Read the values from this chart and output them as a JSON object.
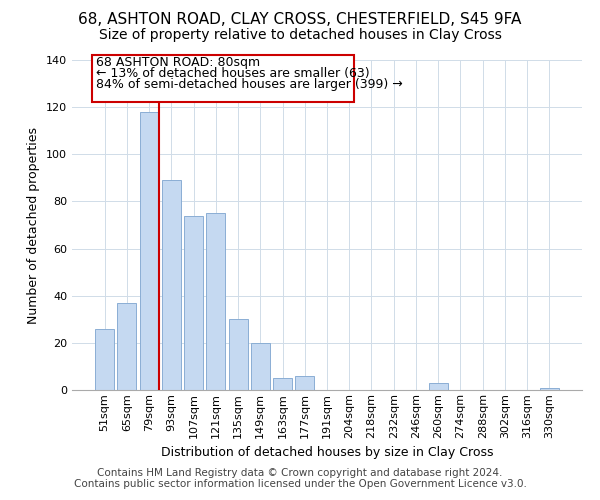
{
  "title": "68, ASHTON ROAD, CLAY CROSS, CHESTERFIELD, S45 9FA",
  "subtitle": "Size of property relative to detached houses in Clay Cross",
  "xlabel": "Distribution of detached houses by size in Clay Cross",
  "ylabel": "Number of detached properties",
  "bar_labels": [
    "51sqm",
    "65sqm",
    "79sqm",
    "93sqm",
    "107sqm",
    "121sqm",
    "135sqm",
    "149sqm",
    "163sqm",
    "177sqm",
    "191sqm",
    "204sqm",
    "218sqm",
    "232sqm",
    "246sqm",
    "260sqm",
    "274sqm",
    "288sqm",
    "302sqm",
    "316sqm",
    "330sqm"
  ],
  "bar_values": [
    26,
    37,
    118,
    89,
    74,
    75,
    30,
    20,
    5,
    6,
    0,
    0,
    0,
    0,
    0,
    3,
    0,
    0,
    0,
    0,
    1
  ],
  "bar_color": "#c5d9f1",
  "bar_edge_color": "#8baed4",
  "highlight_line_color": "#cc0000",
  "vline_bar_index": 2,
  "annotation_line1": "68 ASHTON ROAD: 80sqm",
  "annotation_line2": "← 13% of detached houses are smaller (63)",
  "annotation_line3": "84% of semi-detached houses are larger (399) →",
  "ylim": [
    0,
    140
  ],
  "yticks": [
    0,
    20,
    40,
    60,
    80,
    100,
    120,
    140
  ],
  "footer_line1": "Contains HM Land Registry data © Crown copyright and database right 2024.",
  "footer_line2": "Contains public sector information licensed under the Open Government Licence v3.0.",
  "title_fontsize": 11,
  "subtitle_fontsize": 10,
  "xlabel_fontsize": 9,
  "ylabel_fontsize": 9,
  "tick_fontsize": 8,
  "annotation_fontsize": 9,
  "footer_fontsize": 7.5,
  "bar_width": 0.85
}
